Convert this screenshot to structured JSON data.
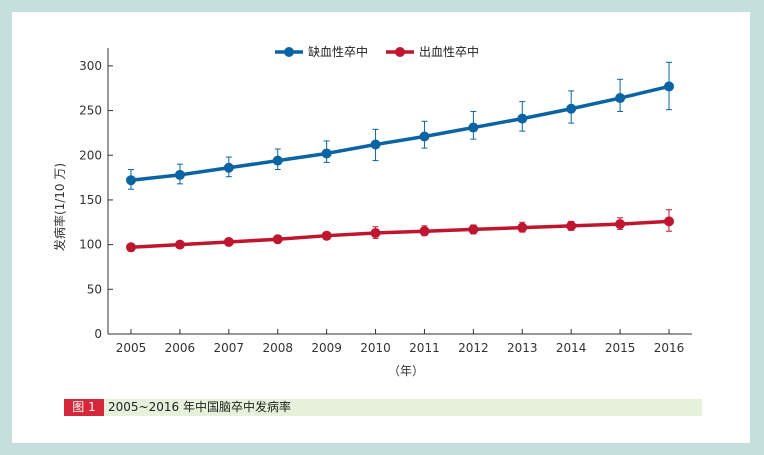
{
  "caption": {
    "figure_label": "图 1",
    "text": "2005~2016 年中国脑卒中发病率"
  },
  "colors": {
    "background": "#c5e0dc",
    "panel": "#ffffff",
    "caption_bg": "#e6f1dc",
    "label_bg": "#d6263a",
    "ischemic": "#0a64a4",
    "hemorrhagic": "#c0152f",
    "axis": "#333333"
  },
  "chart_data": {
    "type": "line",
    "title": "",
    "xlabel": "（年）",
    "ylabel": "发病率(1/10 万)",
    "ylim": [
      0,
      320
    ],
    "yticks": [
      0,
      50,
      100,
      150,
      200,
      250,
      300
    ],
    "categories": [
      "2005",
      "2006",
      "2007",
      "2008",
      "2009",
      "2010",
      "2011",
      "2012",
      "2013",
      "2014",
      "2015",
      "2016"
    ],
    "grid": false,
    "legend_position": "top-center",
    "series": [
      {
        "name": "缺血性卒中",
        "color": "#0a64a4",
        "values": [
          172,
          178,
          186,
          194,
          202,
          212,
          221,
          231,
          241,
          252,
          264,
          277
        ],
        "err_low": [
          162,
          168,
          176,
          184,
          192,
          194,
          208,
          218,
          227,
          236,
          249,
          251
        ],
        "err_high": [
          184,
          190,
          198,
          207,
          216,
          229,
          238,
          249,
          260,
          272,
          285,
          304
        ]
      },
      {
        "name": "出血性卒中",
        "color": "#c0152f",
        "values": [
          97,
          100,
          103,
          106,
          110,
          113,
          115,
          117,
          119,
          121,
          123,
          126
        ],
        "err_low": [
          94,
          97,
          99,
          102,
          106,
          107,
          110,
          112,
          114,
          116,
          117,
          115
        ],
        "err_high": [
          100,
          103,
          106,
          110,
          114,
          120,
          121,
          122,
          125,
          126,
          130,
          139
        ]
      }
    ]
  }
}
